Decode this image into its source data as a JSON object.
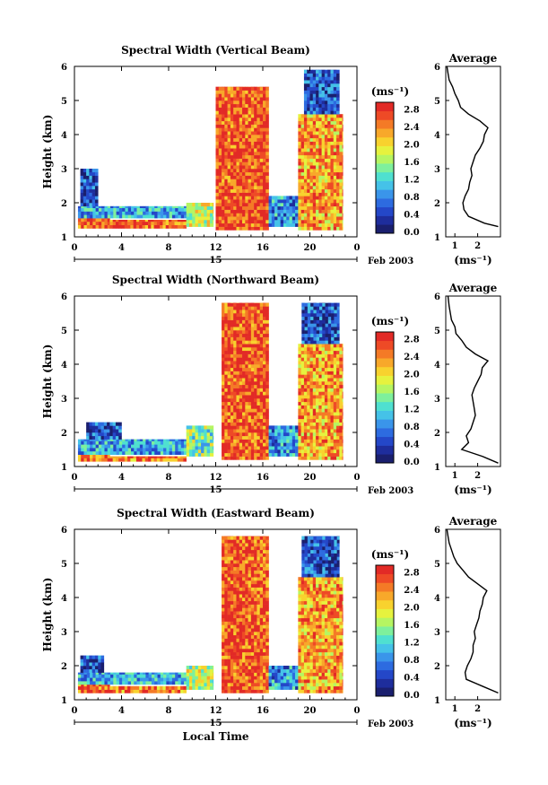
{
  "chart_data": [
    {
      "type": "heatmap",
      "title": "Spectral Width (Vertical Beam)",
      "ylabel": "Height (km)",
      "ylim": [
        1,
        6
      ],
      "yticks": [
        "1",
        "2",
        "3",
        "4",
        "5",
        "6"
      ],
      "xlim": [
        0,
        24
      ],
      "xticks": [
        "0",
        "4",
        "8",
        "12",
        "16",
        "20",
        "0"
      ],
      "date_marker": "15",
      "date_suffix": "Feb 2003",
      "colorbar": {
        "unit": "(ms⁻¹)",
        "ticks": [
          "0.0",
          "0.4",
          "0.8",
          "1.2",
          "1.6",
          "2.0",
          "2.4",
          "2.8"
        ],
        "range": [
          0.0,
          3.0
        ]
      },
      "regions": [
        {
          "t0": 0.3,
          "t1": 3.0,
          "h0": 1.25,
          "h1": 1.55,
          "value": 2.7
        },
        {
          "t0": 3.0,
          "t1": 9.5,
          "h0": 1.25,
          "h1": 1.5,
          "value": 2.6
        },
        {
          "t0": 0.3,
          "t1": 11.5,
          "h0": 1.55,
          "h1": 1.9,
          "value": 1.0
        },
        {
          "t0": 0.5,
          "t1": 2.0,
          "h0": 1.9,
          "h1": 3.0,
          "value": 0.5
        },
        {
          "t0": 9.5,
          "t1": 11.8,
          "h0": 1.3,
          "h1": 2.0,
          "value": 1.8
        },
        {
          "t0": 12.0,
          "t1": 16.5,
          "h0": 1.2,
          "h1": 5.4,
          "value": 2.7
        },
        {
          "t0": 16.5,
          "t1": 19.0,
          "h0": 1.3,
          "h1": 2.2,
          "value": 0.9
        },
        {
          "t0": 19.0,
          "t1": 22.8,
          "h0": 1.2,
          "h1": 4.6,
          "value": 2.3
        },
        {
          "t0": 19.5,
          "t1": 22.5,
          "h0": 4.6,
          "h1": 5.9,
          "value": 0.6
        }
      ],
      "average": {
        "title": "Average",
        "xlabel": "(ms⁻¹)",
        "xticks": [
          "1",
          "2"
        ],
        "xlim": [
          0.6,
          3.0
        ],
        "profile": [
          [
            1.3,
            2.9
          ],
          [
            1.4,
            2.3
          ],
          [
            1.6,
            1.6
          ],
          [
            1.8,
            1.4
          ],
          [
            2.0,
            1.35
          ],
          [
            2.2,
            1.45
          ],
          [
            2.4,
            1.6
          ],
          [
            2.6,
            1.65
          ],
          [
            2.8,
            1.75
          ],
          [
            3.0,
            1.7
          ],
          [
            3.2,
            1.8
          ],
          [
            3.4,
            1.9
          ],
          [
            3.6,
            2.1
          ],
          [
            3.8,
            2.25
          ],
          [
            4.0,
            2.3
          ],
          [
            4.2,
            2.45
          ],
          [
            4.4,
            2.1
          ],
          [
            4.6,
            1.6
          ],
          [
            4.8,
            1.25
          ],
          [
            5.0,
            1.15
          ],
          [
            5.2,
            1.0
          ],
          [
            5.4,
            0.9
          ],
          [
            5.6,
            0.75
          ],
          [
            5.8,
            0.7
          ],
          [
            6.0,
            0.65
          ]
        ]
      }
    },
    {
      "type": "heatmap",
      "title": "Spectral Width (Northward Beam)",
      "ylabel": "Height (km)",
      "ylim": [
        1,
        6
      ],
      "yticks": [
        "1",
        "2",
        "3",
        "4",
        "5",
        "6"
      ],
      "xlim": [
        0,
        24
      ],
      "xticks": [
        "0",
        "4",
        "8",
        "12",
        "16",
        "20",
        "0"
      ],
      "date_marker": "15",
      "date_suffix": "Feb 2003",
      "colorbar": {
        "unit": "(ms⁻¹)",
        "ticks": [
          "0.0",
          "0.4",
          "0.8",
          "1.2",
          "1.6",
          "2.0",
          "2.4",
          "2.8"
        ],
        "range": [
          0.0,
          3.0
        ]
      },
      "regions": [
        {
          "t0": 0.3,
          "t1": 3.0,
          "h0": 1.15,
          "h1": 1.35,
          "value": 2.7
        },
        {
          "t0": 3.0,
          "t1": 9.5,
          "h0": 1.15,
          "h1": 1.3,
          "value": 2.5
        },
        {
          "t0": 0.3,
          "t1": 11.5,
          "h0": 1.35,
          "h1": 1.8,
          "value": 1.0
        },
        {
          "t0": 1.0,
          "t1": 4.0,
          "h0": 1.8,
          "h1": 2.3,
          "value": 0.6
        },
        {
          "t0": 9.5,
          "t1": 11.8,
          "h0": 1.3,
          "h1": 2.2,
          "value": 1.5
        },
        {
          "t0": 12.5,
          "t1": 16.5,
          "h0": 1.2,
          "h1": 5.8,
          "value": 2.7
        },
        {
          "t0": 16.5,
          "t1": 19.0,
          "h0": 1.3,
          "h1": 2.2,
          "value": 0.9
        },
        {
          "t0": 19.0,
          "t1": 22.8,
          "h0": 1.2,
          "h1": 4.6,
          "value": 2.3
        },
        {
          "t0": 19.3,
          "t1": 22.5,
          "h0": 4.6,
          "h1": 5.8,
          "value": 0.6
        }
      ],
      "average": {
        "title": "Average",
        "xlabel": "(ms⁻¹)",
        "xticks": [
          "1",
          "2"
        ],
        "xlim": [
          0.6,
          3.0
        ],
        "profile": [
          [
            1.1,
            2.9
          ],
          [
            1.3,
            2.2
          ],
          [
            1.5,
            1.3
          ],
          [
            1.7,
            1.6
          ],
          [
            1.9,
            1.5
          ],
          [
            2.1,
            1.7
          ],
          [
            2.3,
            1.8
          ],
          [
            2.5,
            1.9
          ],
          [
            2.7,
            1.85
          ],
          [
            2.9,
            1.8
          ],
          [
            3.1,
            1.75
          ],
          [
            3.3,
            1.85
          ],
          [
            3.5,
            2.0
          ],
          [
            3.7,
            2.15
          ],
          [
            3.9,
            2.2
          ],
          [
            4.1,
            2.45
          ],
          [
            4.3,
            1.9
          ],
          [
            4.5,
            1.5
          ],
          [
            4.7,
            1.3
          ],
          [
            4.9,
            1.05
          ],
          [
            5.1,
            1.0
          ],
          [
            5.3,
            0.85
          ],
          [
            5.5,
            0.8
          ],
          [
            5.7,
            0.75
          ],
          [
            6.0,
            0.7
          ]
        ]
      }
    },
    {
      "type": "heatmap",
      "title": "Spectral Width (Eastward Beam)",
      "ylabel": "Height (km)",
      "xlabel": "Local Time",
      "ylim": [
        1,
        6
      ],
      "yticks": [
        "1",
        "2",
        "3",
        "4",
        "5",
        "6"
      ],
      "xlim": [
        0,
        24
      ],
      "xticks": [
        "0",
        "4",
        "8",
        "12",
        "16",
        "20",
        "0"
      ],
      "date_marker": "15",
      "date_suffix": "Feb 2003",
      "colorbar": {
        "unit": "(ms⁻¹)",
        "ticks": [
          "0.0",
          "0.4",
          "0.8",
          "1.2",
          "1.6",
          "2.0",
          "2.4",
          "2.8"
        ],
        "range": [
          0.0,
          3.0
        ]
      },
      "regions": [
        {
          "t0": 0.3,
          "t1": 3.0,
          "h0": 1.2,
          "h1": 1.45,
          "value": 2.7
        },
        {
          "t0": 3.0,
          "t1": 9.5,
          "h0": 1.2,
          "h1": 1.4,
          "value": 2.5
        },
        {
          "t0": 0.3,
          "t1": 11.5,
          "h0": 1.45,
          "h1": 1.8,
          "value": 1.0
        },
        {
          "t0": 0.5,
          "t1": 2.5,
          "h0": 1.8,
          "h1": 2.3,
          "value": 0.5
        },
        {
          "t0": 9.5,
          "t1": 11.8,
          "h0": 1.3,
          "h1": 2.0,
          "value": 1.7
        },
        {
          "t0": 12.5,
          "t1": 16.5,
          "h0": 1.2,
          "h1": 5.8,
          "value": 2.7
        },
        {
          "t0": 16.5,
          "t1": 19.0,
          "h0": 1.3,
          "h1": 2.0,
          "value": 0.9
        },
        {
          "t0": 19.0,
          "t1": 22.8,
          "h0": 1.2,
          "h1": 4.6,
          "value": 2.3
        },
        {
          "t0": 19.3,
          "t1": 22.5,
          "h0": 4.6,
          "h1": 5.8,
          "value": 0.6
        }
      ],
      "average": {
        "title": "Average",
        "xlabel": "(ms⁻¹)",
        "xticks": [
          "1",
          "2"
        ],
        "xlim": [
          0.6,
          3.0
        ],
        "profile": [
          [
            1.2,
            2.9
          ],
          [
            1.4,
            2.2
          ],
          [
            1.6,
            1.5
          ],
          [
            1.8,
            1.45
          ],
          [
            2.0,
            1.55
          ],
          [
            2.2,
            1.7
          ],
          [
            2.4,
            1.8
          ],
          [
            2.6,
            1.8
          ],
          [
            2.8,
            1.9
          ],
          [
            3.0,
            1.85
          ],
          [
            3.2,
            1.95
          ],
          [
            3.4,
            2.05
          ],
          [
            3.6,
            2.1
          ],
          [
            3.8,
            2.2
          ],
          [
            4.0,
            2.25
          ],
          [
            4.2,
            2.4
          ],
          [
            4.4,
            2.0
          ],
          [
            4.6,
            1.6
          ],
          [
            4.8,
            1.35
          ],
          [
            5.0,
            1.1
          ],
          [
            5.2,
            0.95
          ],
          [
            5.4,
            0.85
          ],
          [
            5.6,
            0.75
          ],
          [
            5.8,
            0.7
          ],
          [
            6.0,
            0.65
          ]
        ]
      }
    }
  ]
}
